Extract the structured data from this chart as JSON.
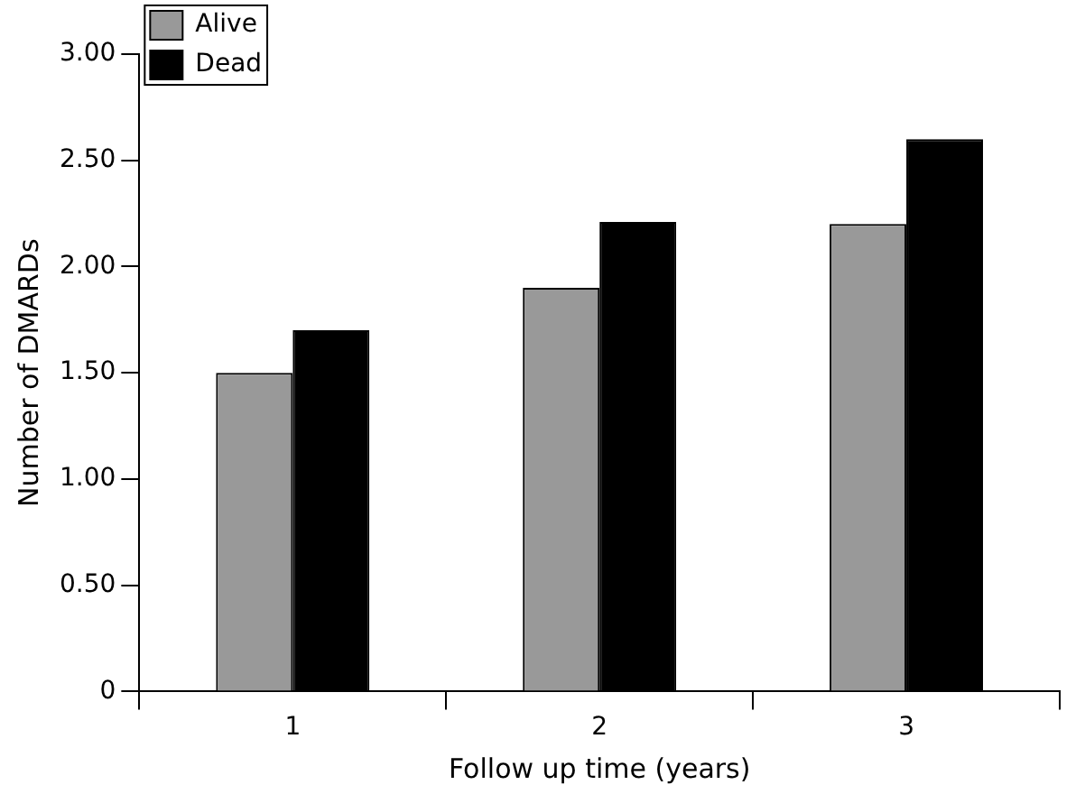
{
  "chart_data": {
    "type": "bar",
    "xlabel": "Follow up time (years)",
    "ylabel": "Number of DMARDs",
    "categories": [
      "1",
      "2",
      "3"
    ],
    "series": [
      {
        "name": "Alive",
        "color": "#999999",
        "values": [
          1.5,
          1.9,
          2.2
        ]
      },
      {
        "name": "Dead",
        "color": "#000000",
        "values": [
          1.7,
          2.21,
          2.6
        ]
      }
    ],
    "ylim": [
      0,
      3
    ],
    "yticks": [
      {
        "value": 0,
        "label": "0"
      },
      {
        "value": 0.5,
        "label": "0.50"
      },
      {
        "value": 1,
        "label": "1.00"
      },
      {
        "value": 1.5,
        "label": "1.50"
      },
      {
        "value": 2,
        "label": "2.00"
      },
      {
        "value": 2.5,
        "label": "2.50"
      },
      {
        "value": 3,
        "label": "3.00"
      }
    ],
    "legend": "top left"
  }
}
